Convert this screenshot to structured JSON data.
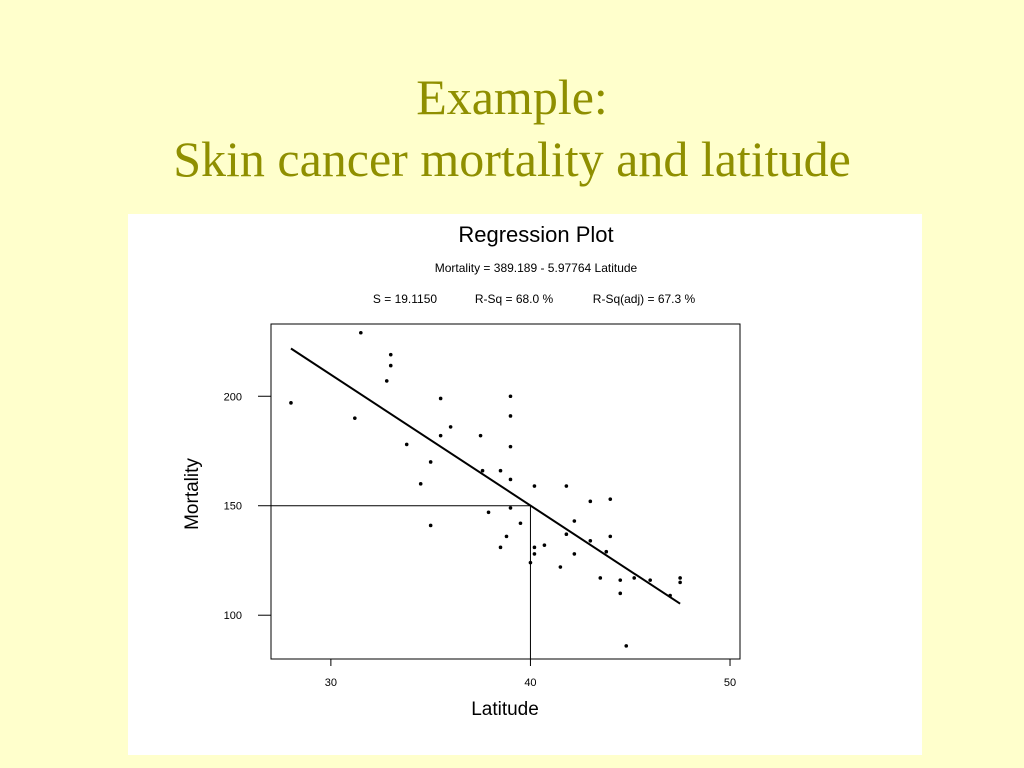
{
  "slide": {
    "title_line1": "Example:",
    "title_line2": "Skin cancer mortality and latitude"
  },
  "colors": {
    "background": "#ffffcc",
    "title": "#8f8f00",
    "panel": "#ffffff",
    "ink": "#000000"
  },
  "chart_data": {
    "type": "scatter",
    "title": "Regression Plot",
    "equation": "Mortality = 389.189 - 5.97764 Latitude",
    "stats": {
      "s": "S = 19.1150",
      "rsq": "R-Sq = 68.0 %",
      "rsq_adj": "R-Sq(adj) = 67.3 %"
    },
    "xlabel": "Latitude",
    "ylabel": "Mortality",
    "xlim": [
      27,
      50.5
    ],
    "ylim": [
      80,
      233
    ],
    "xticks": [
      30,
      40,
      50
    ],
    "yticks": [
      100,
      150,
      200
    ],
    "grid": false,
    "fit": {
      "intercept": 389.189,
      "slope": -5.97764,
      "x_range": [
        28,
        47.5
      ]
    },
    "guide": {
      "x": 40,
      "y": 150
    },
    "points": [
      {
        "x": 28.0,
        "y": 197
      },
      {
        "x": 31.2,
        "y": 190
      },
      {
        "x": 31.5,
        "y": 229
      },
      {
        "x": 32.8,
        "y": 207
      },
      {
        "x": 33.0,
        "y": 219
      },
      {
        "x": 33.0,
        "y": 214
      },
      {
        "x": 33.8,
        "y": 178
      },
      {
        "x": 34.5,
        "y": 160
      },
      {
        "x": 35.0,
        "y": 170
      },
      {
        "x": 35.0,
        "y": 141
      },
      {
        "x": 35.5,
        "y": 199
      },
      {
        "x": 35.5,
        "y": 182
      },
      {
        "x": 36.0,
        "y": 186
      },
      {
        "x": 37.5,
        "y": 182
      },
      {
        "x": 37.6,
        "y": 166
      },
      {
        "x": 37.9,
        "y": 147
      },
      {
        "x": 38.5,
        "y": 166
      },
      {
        "x": 38.5,
        "y": 131
      },
      {
        "x": 38.8,
        "y": 136
      },
      {
        "x": 39.0,
        "y": 200
      },
      {
        "x": 39.0,
        "y": 191
      },
      {
        "x": 39.0,
        "y": 177
      },
      {
        "x": 39.0,
        "y": 162
      },
      {
        "x": 39.0,
        "y": 149
      },
      {
        "x": 39.5,
        "y": 142
      },
      {
        "x": 40.0,
        "y": 124
      },
      {
        "x": 40.2,
        "y": 159
      },
      {
        "x": 40.2,
        "y": 131
      },
      {
        "x": 40.2,
        "y": 128
      },
      {
        "x": 40.7,
        "y": 132
      },
      {
        "x": 41.5,
        "y": 122
      },
      {
        "x": 41.8,
        "y": 159
      },
      {
        "x": 41.8,
        "y": 137
      },
      {
        "x": 42.2,
        "y": 143
      },
      {
        "x": 42.2,
        "y": 128
      },
      {
        "x": 43.0,
        "y": 152
      },
      {
        "x": 43.0,
        "y": 134
      },
      {
        "x": 43.5,
        "y": 117
      },
      {
        "x": 43.8,
        "y": 129
      },
      {
        "x": 44.0,
        "y": 153
      },
      {
        "x": 44.0,
        "y": 136
      },
      {
        "x": 44.5,
        "y": 116
      },
      {
        "x": 44.5,
        "y": 110
      },
      {
        "x": 44.8,
        "y": 86
      },
      {
        "x": 45.2,
        "y": 117
      },
      {
        "x": 46.0,
        "y": 116
      },
      {
        "x": 47.0,
        "y": 109
      },
      {
        "x": 47.5,
        "y": 117
      },
      {
        "x": 47.5,
        "y": 115
      }
    ]
  }
}
